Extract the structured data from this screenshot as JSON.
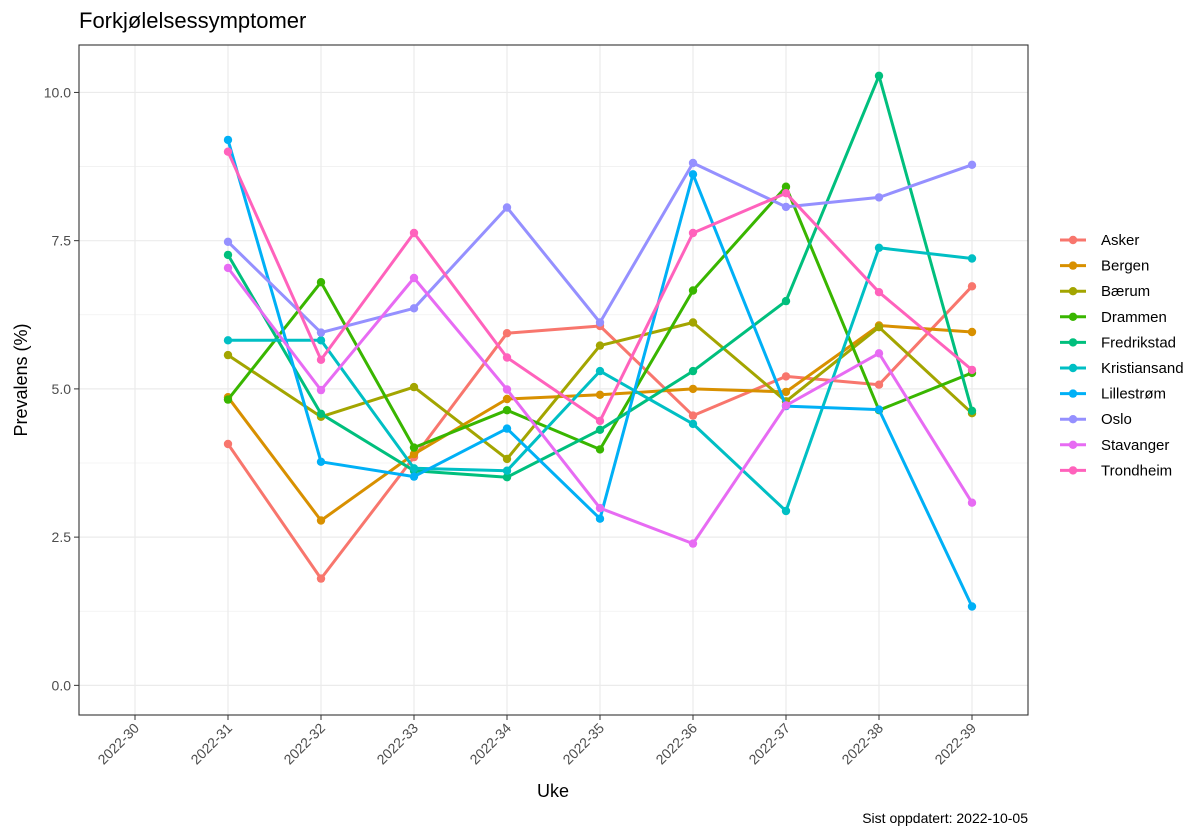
{
  "chart_data": {
    "type": "line",
    "title": "Forkjølelsessymptomer",
    "xlabel": "Uke",
    "ylabel": "Prevalens (%)",
    "caption": "Sist oppdatert: 2022-10-05",
    "categories": [
      "2022-30",
      "2022-31",
      "2022-32",
      "2022-33",
      "2022-34",
      "2022-35",
      "2022-36",
      "2022-37",
      "2022-38",
      "2022-39"
    ],
    "yticks": [
      "0.0",
      "2.5",
      "5.0",
      "7.5",
      "10.0"
    ],
    "ylim": [
      -0.5,
      10.8
    ],
    "grid": true,
    "legend_position": "right",
    "series": [
      {
        "name": "Asker",
        "color": "#F8766D",
        "values": [
          null,
          4.07,
          1.8,
          3.85,
          5.94,
          6.06,
          4.55,
          5.21,
          5.07,
          6.73
        ]
      },
      {
        "name": "Bergen",
        "color": "#D89000",
        "values": [
          null,
          4.86,
          2.78,
          3.9,
          4.83,
          4.9,
          5.0,
          4.95,
          6.07,
          5.96
        ]
      },
      {
        "name": "Bærum",
        "color": "#A3A500",
        "values": [
          null,
          5.57,
          4.53,
          5.03,
          3.82,
          5.73,
          6.12,
          4.79,
          6.04,
          4.59
        ]
      },
      {
        "name": "Drammen",
        "color": "#39B600",
        "values": [
          null,
          4.82,
          6.8,
          4.01,
          4.64,
          3.98,
          6.66,
          8.41,
          4.64,
          5.27
        ]
      },
      {
        "name": "Fredrikstad",
        "color": "#00BF7D",
        "values": [
          null,
          7.26,
          4.58,
          3.62,
          3.51,
          4.31,
          5.3,
          6.48,
          10.28,
          4.63
        ]
      },
      {
        "name": "Kristiansand",
        "color": "#00BFC4",
        "values": [
          null,
          5.82,
          5.82,
          3.66,
          3.62,
          5.3,
          4.41,
          2.94,
          7.38,
          7.2
        ]
      },
      {
        "name": "Lillestrøm",
        "color": "#00B0F6",
        "values": [
          null,
          9.2,
          3.77,
          3.52,
          4.33,
          2.81,
          8.62,
          4.71,
          4.65,
          1.33
        ]
      },
      {
        "name": "Oslo",
        "color": "#9590FF",
        "values": [
          null,
          7.48,
          5.95,
          6.36,
          8.06,
          6.12,
          8.81,
          8.07,
          8.23,
          8.78
        ]
      },
      {
        "name": "Stavanger",
        "color": "#E76BF3",
        "values": [
          null,
          7.04,
          4.98,
          6.87,
          4.99,
          2.99,
          2.39,
          4.72,
          5.6,
          3.08
        ]
      },
      {
        "name": "Trondheim",
        "color": "#FF62BC",
        "values": [
          null,
          9.0,
          5.49,
          7.63,
          5.53,
          4.46,
          7.63,
          8.3,
          6.63,
          5.32
        ]
      }
    ]
  }
}
